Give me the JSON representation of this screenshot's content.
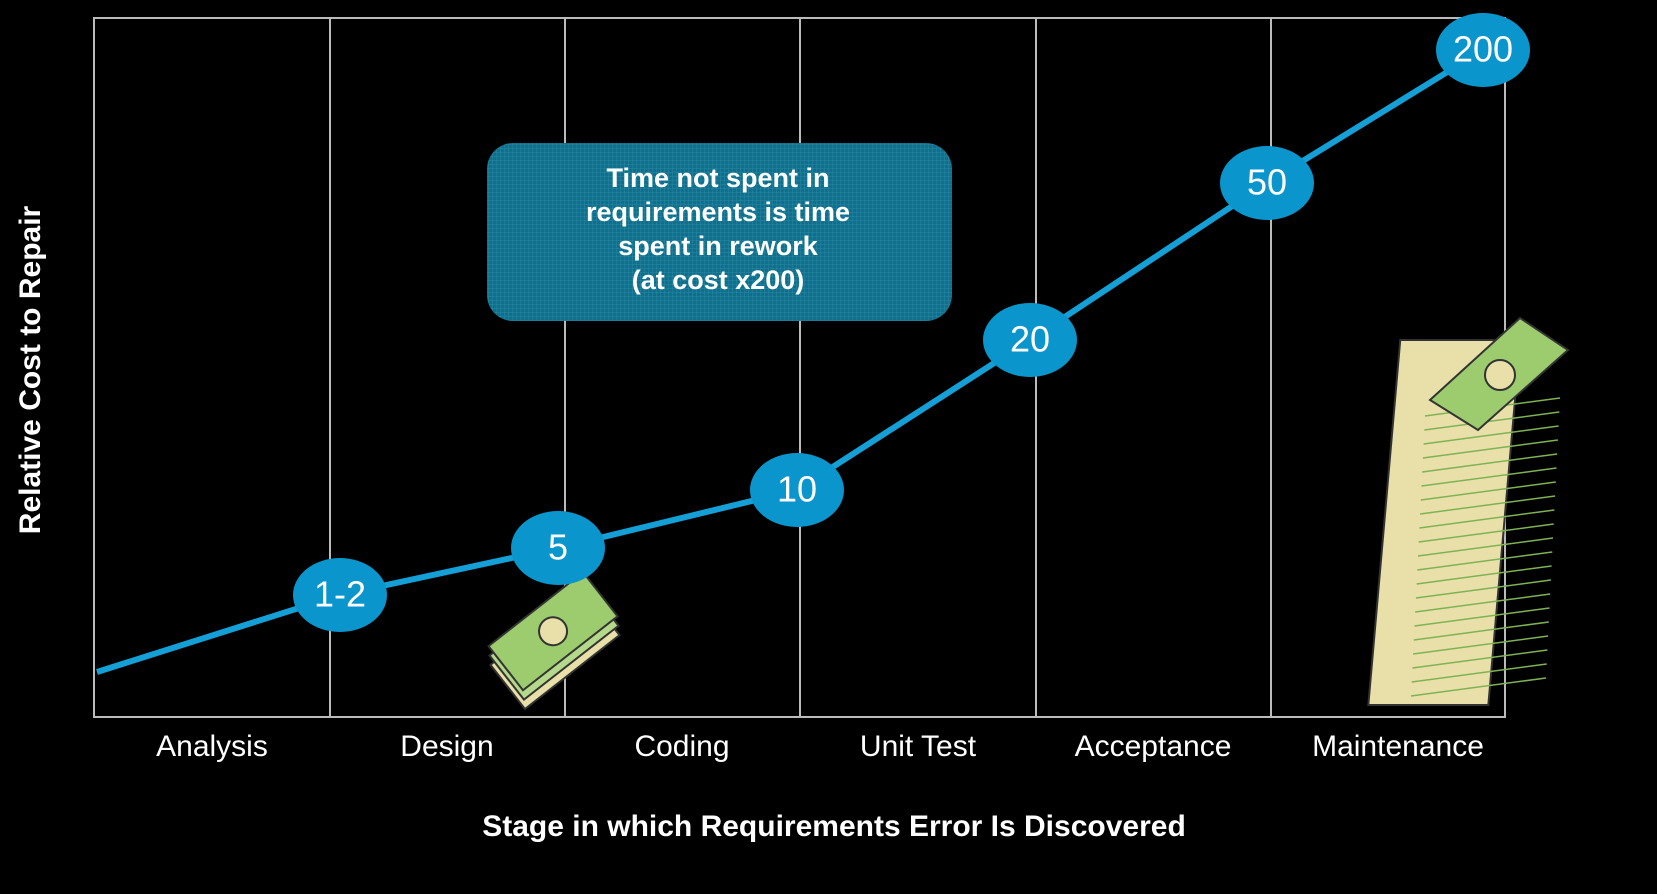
{
  "y_axis_label": "Relative Cost to Repair",
  "x_axis_label": "Stage in which Requirements Error Is Discovered",
  "stages": [
    "Analysis",
    "Design",
    "Coding",
    "Unit  Test",
    "Acceptance",
    "Maintenance"
  ],
  "cost_labels": [
    "1-2",
    "5",
    "10",
    "20",
    "50",
    "200"
  ],
  "callout": [
    "Time not spent in",
    "requirements is time",
    "spent in rework",
    "(at cost x200)"
  ]
}
